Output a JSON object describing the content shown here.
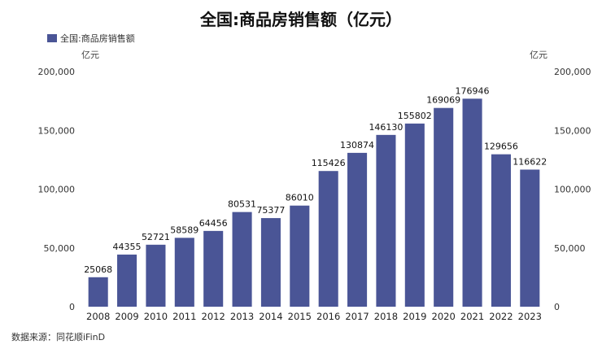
{
  "chart_data": {
    "type": "bar",
    "title": "全国:商品房销售额（亿元）",
    "legend": [
      "全国:商品房销售额"
    ],
    "legend_position": "top-left",
    "ylabel_left": "亿元",
    "ylabel_right": "亿元",
    "ylim": [
      0,
      200000
    ],
    "yticks": [
      "0",
      "50,000",
      "100,000",
      "150,000",
      "200,000"
    ],
    "yticks_values": [
      0,
      50000,
      100000,
      150000,
      200000
    ],
    "grid": false,
    "categories": [
      "2008",
      "2009",
      "2010",
      "2011",
      "2012",
      "2013",
      "2014",
      "2015",
      "2016",
      "2017",
      "2018",
      "2019",
      "2020",
      "2021",
      "2022",
      "2023"
    ],
    "series": [
      {
        "name": "全国:商品房销售额",
        "values": [
          25068,
          44355,
          52721,
          58589,
          64456,
          80531,
          75377,
          86010,
          115426,
          130874,
          146130,
          155802,
          169069,
          176946,
          129656,
          116622
        ]
      }
    ],
    "bar_color": "#4a5596",
    "source": "数据来源：同花顺iFinD"
  }
}
